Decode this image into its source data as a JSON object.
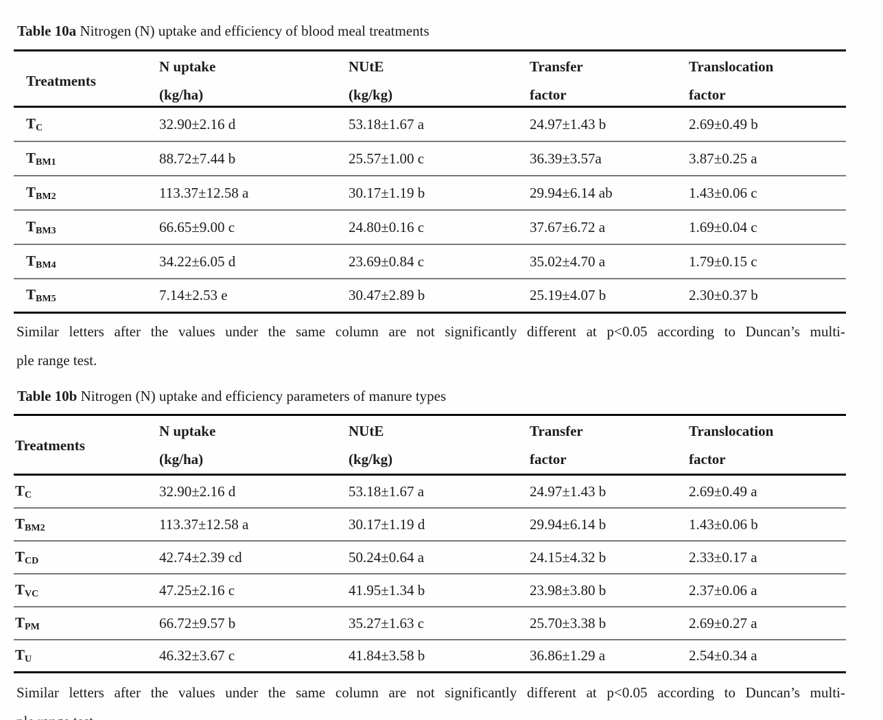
{
  "tables": [
    {
      "title_label": "Table 10a",
      "title_text": " Nitrogen (N) uptake and efficiency of blood meal treatments",
      "header": {
        "treatments": "Treatments",
        "col2_line1": "N uptake",
        "col2_line2": "(kg/ha)",
        "col3_line1": "NUtE",
        "col3_line2": "(kg/kg)",
        "col4_line1": "Transfer",
        "col4_line2": "factor",
        "col5_line1": "Translocation",
        "col5_line2": "factor"
      },
      "rows": [
        {
          "t": "T",
          "sub": "C",
          "n_uptake": "32.90±2.16 d",
          "nute": "53.18±1.67 a",
          "transfer": "24.97±1.43 b",
          "translocation": "2.69±0.49 b"
        },
        {
          "t": "T",
          "sub": "BM1",
          "n_uptake": "88.72±7.44 b",
          "nute": "25.57±1.00 c",
          "transfer": "36.39±3.57a",
          "translocation": "3.87±0.25 a"
        },
        {
          "t": "T",
          "sub": "BM2",
          "n_uptake": "113.37±12.58 a",
          "nute": "30.17±1.19 b",
          "transfer": "29.94±6.14 ab",
          "translocation": "1.43±0.06 c"
        },
        {
          "t": "T",
          "sub": "BM3",
          "n_uptake": "66.65±9.00 c",
          "nute": "24.80±0.16 c",
          "transfer": "37.67±6.72 a",
          "translocation": "1.69±0.04 c"
        },
        {
          "t": "T",
          "sub": "BM4",
          "n_uptake": "34.22±6.05 d",
          "nute": "23.69±0.84 c",
          "transfer": "35.02±4.70 a",
          "translocation": "1.79±0.15 c"
        },
        {
          "t": "T",
          "sub": "BM5",
          "n_uptake": "7.14±2.53 e",
          "nute": "30.47±2.89 b",
          "transfer": "25.19±4.07 b",
          "translocation": "2.30±0.37 b"
        }
      ],
      "footnote_line1": "Similar letters after the values under the same column are not significantly different at p<0.05 according to Duncan’s multi-",
      "footnote_line2": "ple range test."
    },
    {
      "title_label": "Table 10b",
      "title_text": " Nitrogen (N) uptake and efficiency parameters of manure types",
      "header": {
        "treatments": "Treatments",
        "col2_line1": "N uptake",
        "col2_line2": "(kg/ha)",
        "col3_line1": "NUtE",
        "col3_line2": "(kg/kg)",
        "col4_line1": "Transfer",
        "col4_line2": "factor",
        "col5_line1": "Translocation",
        "col5_line2": "factor"
      },
      "rows": [
        {
          "t": "T",
          "sub": "C",
          "n_uptake": "32.90±2.16 d",
          "nute": "53.18±1.67 a",
          "transfer": "24.97±1.43 b",
          "translocation": "2.69±0.49 a"
        },
        {
          "t": "T",
          "sub": "BM2",
          "n_uptake": "113.37±12.58 a",
          "nute": "30.17±1.19 d",
          "transfer": "29.94±6.14 b",
          "translocation": "1.43±0.06 b"
        },
        {
          "t": "T",
          "sub": "CD",
          "n_uptake": "42.74±2.39 cd",
          "nute": "50.24±0.64 a",
          "transfer": "24.15±4.32 b",
          "translocation": "2.33±0.17 a"
        },
        {
          "t": "T",
          "sub": "VC",
          "n_uptake": "47.25±2.16 c",
          "nute": "41.95±1.34 b",
          "transfer": "23.98±3.80 b",
          "translocation": "2.37±0.06 a"
        },
        {
          "t": "T",
          "sub": "PM",
          "n_uptake": "66.72±9.57 b",
          "nute": "35.27±1.63 c",
          "transfer": "25.70±3.38 b",
          "translocation": "2.69±0.27 a"
        },
        {
          "t": "T",
          "sub": "U",
          "n_uptake": "46.32±3.67 c",
          "nute": "41.84±3.58 b",
          "transfer": "36.86±1.29 a",
          "translocation": "2.54±0.34 a"
        }
      ],
      "footnote_line1": "Similar letters after the values under the same column are not significantly different at p<0.05 according to Duncan’s multi-",
      "footnote_line2": "ple range test"
    }
  ]
}
